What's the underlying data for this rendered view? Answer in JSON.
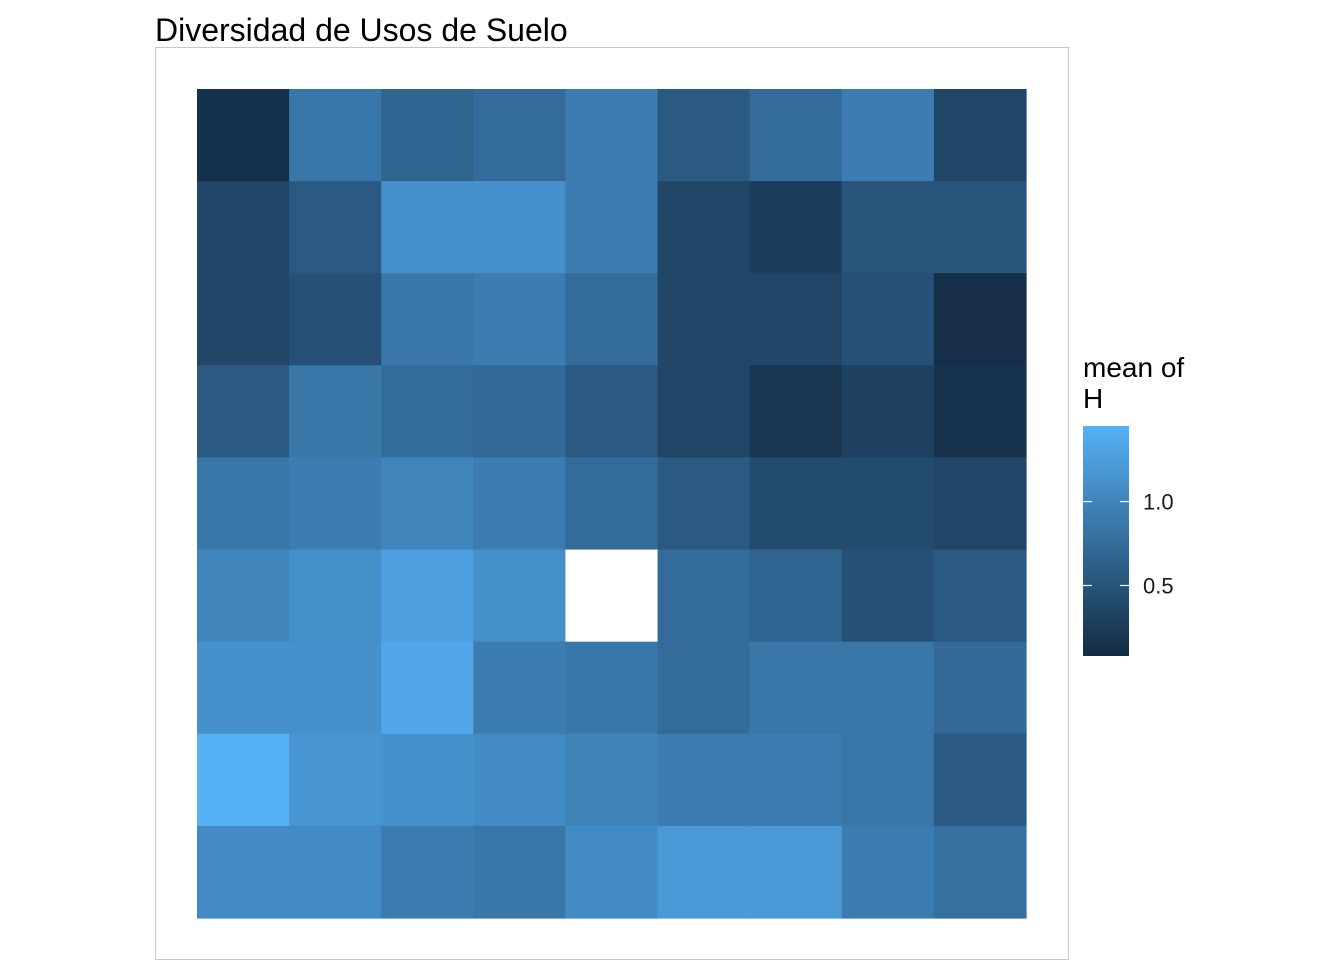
{
  "chart_data": {
    "type": "heatmap",
    "title": "Diversidad de Usos de Suelo",
    "xlabel": "",
    "ylabel": "",
    "rows": 9,
    "cols": 9,
    "values": [
      [
        0.13,
        0.86,
        0.66,
        0.74,
        0.91,
        0.56,
        0.74,
        0.91,
        0.36
      ],
      [
        0.36,
        0.56,
        1.12,
        1.12,
        0.91,
        0.36,
        0.27,
        0.51,
        0.51
      ],
      [
        0.36,
        0.46,
        0.86,
        0.91,
        0.74,
        0.36,
        0.36,
        0.46,
        0.12
      ],
      [
        0.56,
        0.86,
        0.74,
        0.71,
        0.56,
        0.36,
        0.2,
        0.31,
        0.16
      ],
      [
        0.86,
        0.91,
        1.0,
        0.91,
        0.74,
        0.56,
        0.41,
        0.41,
        0.36
      ],
      [
        1.0,
        1.1,
        1.26,
        1.1,
        null,
        0.74,
        0.66,
        0.46,
        0.56
      ],
      [
        1.12,
        1.12,
        1.35,
        0.91,
        0.86,
        0.74,
        0.86,
        0.86,
        0.71
      ],
      [
        1.45,
        1.16,
        1.12,
        1.06,
        0.98,
        0.91,
        0.91,
        0.86,
        0.56
      ],
      [
        1.06,
        1.06,
        0.91,
        0.86,
        1.06,
        1.2,
        1.2,
        0.91,
        0.79
      ]
    ],
    "color_scale": {
      "low": "#132B43",
      "high": "#56B1F7",
      "min": 0.08,
      "max": 1.45,
      "na_color": "#ffffff"
    },
    "legend": {
      "title": "mean of\nH",
      "title_lines": [
        "mean of",
        "H"
      ],
      "ticks": [
        0.5,
        1.0
      ],
      "tick_labels": [
        "0.5",
        "1.0"
      ],
      "position": "right"
    },
    "grid": false
  }
}
